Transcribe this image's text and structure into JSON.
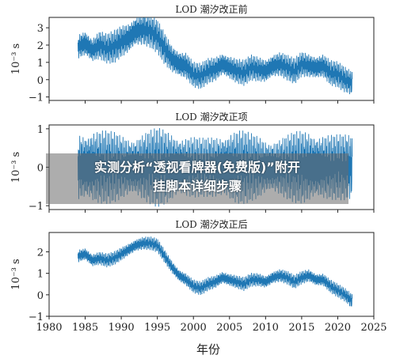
{
  "chart_data": [
    {
      "type": "line",
      "title": "LOD 潮汐改正前",
      "ylabel": "10⁻³ s",
      "ylim": [
        -1.2,
        3.6
      ],
      "yticks": [
        -1,
        0,
        1,
        2,
        3
      ],
      "xlim": [
        1980,
        2025
      ],
      "color": "#1f77b4",
      "series": [
        {
          "x": [
            1984,
            1985,
            1986,
            1987,
            1988,
            1989,
            1990,
            1991,
            1992,
            1993,
            1994,
            1995,
            1996,
            1997,
            1998,
            1999,
            2000,
            2001,
            2002,
            2003,
            2004,
            2005,
            2006,
            2007,
            2008,
            2009,
            2010,
            2011,
            2012,
            2013,
            2014,
            2015,
            2016,
            2017,
            2018,
            2019,
            2020,
            2021,
            2022
          ],
          "values": [
            1.9,
            2.1,
            1.7,
            2.0,
            1.8,
            1.9,
            2.2,
            2.4,
            2.8,
            2.9,
            2.8,
            2.5,
            1.8,
            1.2,
            0.9,
            0.8,
            0.3,
            0.2,
            0.5,
            0.6,
            0.9,
            0.7,
            0.5,
            0.4,
            0.7,
            0.6,
            0.5,
            0.8,
            0.9,
            0.7,
            0.5,
            0.9,
            0.8,
            0.7,
            0.8,
            0.4,
            0.3,
            0.0,
            -0.2
          ],
          "amplitude": [
            0.7,
            0.8,
            0.7,
            0.8,
            0.8,
            0.9,
            0.9,
            0.9,
            0.9,
            0.9,
            0.9,
            0.9,
            0.9,
            0.8,
            0.8,
            0.8,
            0.7,
            0.7,
            0.7,
            0.7,
            0.7,
            0.7,
            0.7,
            0.7,
            0.7,
            0.7,
            0.7,
            0.7,
            0.7,
            0.7,
            0.7,
            0.7,
            0.7,
            0.7,
            0.7,
            0.7,
            0.7,
            0.7,
            0.7
          ]
        }
      ]
    },
    {
      "type": "line",
      "title": "LOD 潮汐改正项",
      "ylabel": "10⁻³ s",
      "ylim": [
        -1.1,
        1.1
      ],
      "yticks": [
        -1,
        0,
        1
      ],
      "xlim": [
        1980,
        2025
      ],
      "color": "#1f77b4",
      "series": [
        {
          "x": [
            1984,
            1985,
            1986,
            1987,
            1988,
            1989,
            1990,
            1991,
            1992,
            1993,
            1994,
            1995,
            1996,
            1997,
            1998,
            1999,
            2000,
            2001,
            2002,
            2003,
            2004,
            2005,
            2006,
            2007,
            2008,
            2009,
            2010,
            2011,
            2012,
            2013,
            2014,
            2015,
            2016,
            2017,
            2018,
            2019,
            2020,
            2021,
            2022
          ],
          "values": [
            0,
            0,
            0,
            0,
            0,
            0,
            0,
            0,
            0,
            0,
            0,
            0,
            0,
            0,
            0,
            0,
            0,
            0,
            0,
            0,
            0,
            0,
            0,
            0,
            0,
            0,
            0,
            0,
            0,
            0,
            0,
            0,
            0,
            0,
            0,
            0,
            0,
            0,
            0
          ],
          "amplitude": [
            0.85,
            0.9,
            0.95,
            0.92,
            0.88,
            0.85,
            0.8,
            0.78,
            0.8,
            0.85,
            0.9,
            0.95,
            0.92,
            0.88,
            0.82,
            0.78,
            0.75,
            0.7,
            0.72,
            0.78,
            0.85,
            0.9,
            0.92,
            0.88,
            0.82,
            0.78,
            0.72,
            0.7,
            0.72,
            0.78,
            0.85,
            0.9,
            0.92,
            0.88,
            0.84,
            0.8,
            0.78,
            0.8,
            0.82
          ]
        }
      ]
    },
    {
      "type": "line",
      "title": "LOD 潮汐改正后",
      "ylabel": "10⁻³ s",
      "xlabel": "年份",
      "ylim": [
        -1.0,
        2.9
      ],
      "yticks": [
        -1,
        0,
        1,
        2
      ],
      "xlim": [
        1980,
        2025
      ],
      "xticks": [
        1980,
        1985,
        1990,
        1995,
        2000,
        2005,
        2010,
        2015,
        2020,
        2025
      ],
      "color": "#1f77b4",
      "series": [
        {
          "x": [
            1984,
            1985,
            1986,
            1987,
            1988,
            1989,
            1990,
            1991,
            1992,
            1993,
            1994,
            1995,
            1996,
            1997,
            1998,
            1999,
            2000,
            2001,
            2002,
            2003,
            2004,
            2005,
            2006,
            2007,
            2008,
            2009,
            2010,
            2011,
            2012,
            2013,
            2014,
            2015,
            2016,
            2017,
            2018,
            2019,
            2020,
            2021,
            2022
          ],
          "values": [
            1.8,
            1.9,
            1.6,
            1.7,
            1.6,
            1.7,
            1.9,
            2.1,
            2.3,
            2.4,
            2.4,
            2.3,
            1.8,
            1.3,
            0.9,
            0.7,
            0.4,
            0.3,
            0.5,
            0.6,
            0.8,
            0.7,
            0.6,
            0.5,
            0.7,
            0.7,
            0.6,
            0.8,
            0.9,
            0.8,
            0.6,
            0.8,
            0.9,
            0.7,
            0.7,
            0.4,
            0.2,
            0.0,
            -0.3
          ],
          "amplitude": [
            0.3,
            0.3,
            0.3,
            0.3,
            0.3,
            0.3,
            0.3,
            0.3,
            0.3,
            0.3,
            0.3,
            0.3,
            0.3,
            0.3,
            0.3,
            0.3,
            0.3,
            0.3,
            0.3,
            0.3,
            0.3,
            0.3,
            0.3,
            0.3,
            0.3,
            0.3,
            0.3,
            0.3,
            0.3,
            0.3,
            0.3,
            0.3,
            0.3,
            0.3,
            0.3,
            0.3,
            0.3,
            0.3,
            0.35
          ]
        }
      ]
    }
  ],
  "overlay": {
    "line1": "实测分析“透视看牌器(免费版)”附开",
    "line2": "挂脚本详细步骤"
  }
}
